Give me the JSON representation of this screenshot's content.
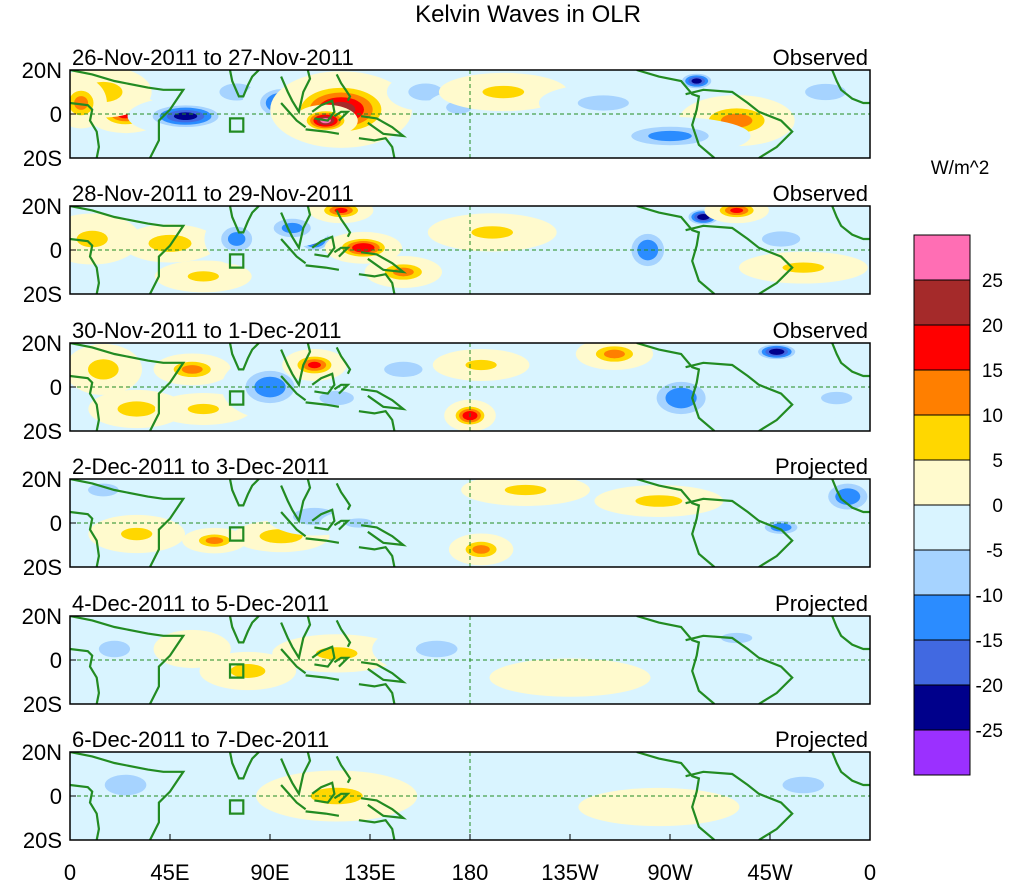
{
  "chart_data": {
    "type": "heatmap",
    "title": "Kelvin Waves in OLR",
    "units_label": "W/m^2",
    "x_ticks": [
      "0",
      "45E",
      "90E",
      "135E",
      "180",
      "135W",
      "90W",
      "45W",
      "0"
    ],
    "y_ticks": [
      "20N",
      "0",
      "20S"
    ],
    "lon_range": [
      0,
      360
    ],
    "lat_range": [
      -20,
      20
    ],
    "colorbar": {
      "levels": [
        "25",
        "20",
        "15",
        "10",
        "5",
        "0",
        "-5",
        "-10",
        "-15",
        "-20",
        "-25"
      ],
      "colors": [
        "#ff6eb4",
        "#a52a2a",
        "#ff0000",
        "#ff7f00",
        "#ffd700",
        "#fffacd",
        "#d9f4ff",
        "#a6d3ff",
        "#2b8cff",
        "#4169e1",
        "#00008b",
        "#9b30ff"
      ]
    },
    "panels": [
      {
        "date": "26-Nov-2011 to 27-Nov-2011",
        "status": "Observed",
        "blobs": [
          {
            "lon": 25,
            "lat": 0,
            "rlon": 12,
            "rlat": 6,
            "v": 17
          },
          {
            "lon": 15,
            "lat": 10,
            "rlon": 15,
            "rlat": 8,
            "v": 8
          },
          {
            "lon": 5,
            "lat": 5,
            "rlon": 8,
            "rlat": 8,
            "v": 12
          },
          {
            "lon": 52,
            "lat": -1,
            "rlon": 18,
            "rlat": 6,
            "v": -22
          },
          {
            "lon": 75,
            "lat": 10,
            "rlon": 12,
            "rlat": 6,
            "v": -10
          },
          {
            "lon": 95,
            "lat": 5,
            "rlon": 12,
            "rlat": 8,
            "v": -18
          },
          {
            "lon": 110,
            "lat": 2,
            "rlon": 8,
            "rlat": 5,
            "v": -22
          },
          {
            "lon": 122,
            "lat": 2,
            "rlon": 22,
            "rlat": 12,
            "v": 22
          },
          {
            "lon": 115,
            "lat": -3,
            "rlon": 10,
            "rlat": 5,
            "v": 26
          },
          {
            "lon": 160,
            "lat": 10,
            "rlon": 12,
            "rlat": 6,
            "v": -10
          },
          {
            "lon": 175,
            "lat": 3,
            "rlon": 10,
            "rlat": 5,
            "v": -8
          },
          {
            "lon": 195,
            "lat": 10,
            "rlon": 20,
            "rlat": 6,
            "v": 6
          },
          {
            "lon": 240,
            "lat": 5,
            "rlon": 20,
            "rlat": 6,
            "v": -8
          },
          {
            "lon": 282,
            "lat": 15,
            "rlon": 8,
            "rlat": 4,
            "v": -22
          },
          {
            "lon": 300,
            "lat": -3,
            "rlon": 18,
            "rlat": 8,
            "v": 12
          },
          {
            "lon": 270,
            "lat": -10,
            "rlon": 25,
            "rlat": 6,
            "v": -12
          },
          {
            "lon": 340,
            "lat": 10,
            "rlon": 15,
            "rlat": 6,
            "v": -9
          }
        ]
      },
      {
        "date": "28-Nov-2011 to 29-Nov-2011",
        "status": "Observed",
        "blobs": [
          {
            "lon": 10,
            "lat": 5,
            "rlon": 15,
            "rlat": 8,
            "v": 6
          },
          {
            "lon": 45,
            "lat": 3,
            "rlon": 15,
            "rlat": 6,
            "v": 10
          },
          {
            "lon": 60,
            "lat": -12,
            "rlon": 15,
            "rlat": 5,
            "v": 6
          },
          {
            "lon": 75,
            "lat": 5,
            "rlon": 10,
            "rlat": 8,
            "v": -12
          },
          {
            "lon": 110,
            "lat": 5,
            "rlon": 8,
            "rlat": 6,
            "v": -22
          },
          {
            "lon": 100,
            "lat": 10,
            "rlon": 12,
            "rlat": 6,
            "v": -12
          },
          {
            "lon": 132,
            "lat": 1,
            "rlon": 12,
            "rlat": 5,
            "v": 20
          },
          {
            "lon": 150,
            "lat": -10,
            "rlon": 12,
            "rlat": 5,
            "v": 12
          },
          {
            "lon": 122,
            "lat": 18,
            "rlon": 10,
            "rlat": 4,
            "v": 16
          },
          {
            "lon": 190,
            "lat": 8,
            "rlon": 20,
            "rlat": 6,
            "v": 6
          },
          {
            "lon": 260,
            "lat": 0,
            "rlon": 10,
            "rlat": 10,
            "v": -14
          },
          {
            "lon": 285,
            "lat": 15,
            "rlon": 8,
            "rlat": 4,
            "v": -24
          },
          {
            "lon": 300,
            "lat": 18,
            "rlon": 10,
            "rlat": 4,
            "v": 16
          },
          {
            "lon": 320,
            "lat": 5,
            "rlon": 15,
            "rlat": 6,
            "v": -8
          },
          {
            "lon": 330,
            "lat": -8,
            "rlon": 20,
            "rlat": 5,
            "v": 6
          }
        ]
      },
      {
        "date": "30-Nov-2011 to 1-Dec-2011",
        "status": "Observed",
        "blobs": [
          {
            "lon": 15,
            "lat": 8,
            "rlon": 12,
            "rlat": 8,
            "v": 8
          },
          {
            "lon": 30,
            "lat": -10,
            "rlon": 15,
            "rlat": 6,
            "v": 8
          },
          {
            "lon": 55,
            "lat": 8,
            "rlon": 12,
            "rlat": 5,
            "v": 12
          },
          {
            "lon": 60,
            "lat": -10,
            "rlon": 15,
            "rlat": 5,
            "v": 6
          },
          {
            "lon": 90,
            "lat": 0,
            "rlon": 15,
            "rlat": 10,
            "v": -14
          },
          {
            "lon": 110,
            "lat": 10,
            "rlon": 10,
            "rlat": 5,
            "v": 16
          },
          {
            "lon": 120,
            "lat": -5,
            "rlon": 12,
            "rlat": 5,
            "v": -10
          },
          {
            "lon": 150,
            "lat": 8,
            "rlon": 15,
            "rlat": 6,
            "v": -8
          },
          {
            "lon": 180,
            "lat": -13,
            "rlon": 8,
            "rlat": 5,
            "v": 20
          },
          {
            "lon": 185,
            "lat": 10,
            "rlon": 15,
            "rlat": 5,
            "v": 6
          },
          {
            "lon": 245,
            "lat": 15,
            "rlon": 12,
            "rlat": 5,
            "v": 12
          },
          {
            "lon": 275,
            "lat": -5,
            "rlon": 15,
            "rlat": 10,
            "v": -14
          },
          {
            "lon": 318,
            "lat": 16,
            "rlon": 10,
            "rlat": 4,
            "v": -24
          },
          {
            "lon": 345,
            "lat": -5,
            "rlon": 15,
            "rlat": 6,
            "v": -6
          }
        ]
      },
      {
        "date": "2-Dec-2011 to 3-Dec-2011",
        "status": "Projected",
        "blobs": [
          {
            "lon": 15,
            "lat": 15,
            "rlon": 12,
            "rlat": 5,
            "v": -8
          },
          {
            "lon": 30,
            "lat": -5,
            "rlon": 15,
            "rlat": 6,
            "v": 6
          },
          {
            "lon": 65,
            "lat": -8,
            "rlon": 10,
            "rlat": 4,
            "v": 12
          },
          {
            "lon": 95,
            "lat": -6,
            "rlon": 15,
            "rlat": 5,
            "v": 10
          },
          {
            "lon": 110,
            "lat": 3,
            "rlon": 15,
            "rlat": 6,
            "v": -10
          },
          {
            "lon": 130,
            "lat": 0,
            "rlon": 12,
            "rlat": 4,
            "v": -7
          },
          {
            "lon": 185,
            "lat": -12,
            "rlon": 10,
            "rlat": 5,
            "v": 12
          },
          {
            "lon": 205,
            "lat": 15,
            "rlon": 20,
            "rlat": 5,
            "v": 6
          },
          {
            "lon": 265,
            "lat": 10,
            "rlon": 20,
            "rlat": 5,
            "v": 7
          },
          {
            "lon": 320,
            "lat": -2,
            "rlon": 10,
            "rlat": 4,
            "v": -14
          },
          {
            "lon": 350,
            "lat": 12,
            "rlon": 12,
            "rlat": 8,
            "v": -14
          }
        ]
      },
      {
        "date": "4-Dec-2011 to 5-Dec-2011",
        "status": "Projected",
        "blobs": [
          {
            "lon": 20,
            "lat": 5,
            "rlon": 15,
            "rlat": 8,
            "v": -6
          },
          {
            "lon": 55,
            "lat": 5,
            "rlon": 12,
            "rlat": 6,
            "v": 5
          },
          {
            "lon": 80,
            "lat": -5,
            "rlon": 15,
            "rlat": 6,
            "v": 7
          },
          {
            "lon": 120,
            "lat": 3,
            "rlon": 20,
            "rlat": 6,
            "v": 6
          },
          {
            "lon": 165,
            "lat": 5,
            "rlon": 20,
            "rlat": 8,
            "v": -6
          },
          {
            "lon": 225,
            "lat": -8,
            "rlon": 25,
            "rlat": 6,
            "v": 5
          },
          {
            "lon": 300,
            "lat": 10,
            "rlon": 15,
            "rlat": 5,
            "v": -6
          }
        ]
      },
      {
        "date": "6-Dec-2011 to 7-Dec-2011",
        "status": "Projected",
        "blobs": [
          {
            "lon": 25,
            "lat": 5,
            "rlon": 20,
            "rlat": 10,
            "v": -6
          },
          {
            "lon": 120,
            "lat": 0,
            "rlon": 25,
            "rlat": 8,
            "v": 6
          },
          {
            "lon": 190,
            "lat": 10,
            "rlon": 30,
            "rlat": 6,
            "v": -5
          },
          {
            "lon": 265,
            "lat": -5,
            "rlon": 25,
            "rlat": 6,
            "v": 4
          },
          {
            "lon": 330,
            "lat": 5,
            "rlon": 20,
            "rlat": 8,
            "v": -6
          }
        ]
      }
    ]
  }
}
